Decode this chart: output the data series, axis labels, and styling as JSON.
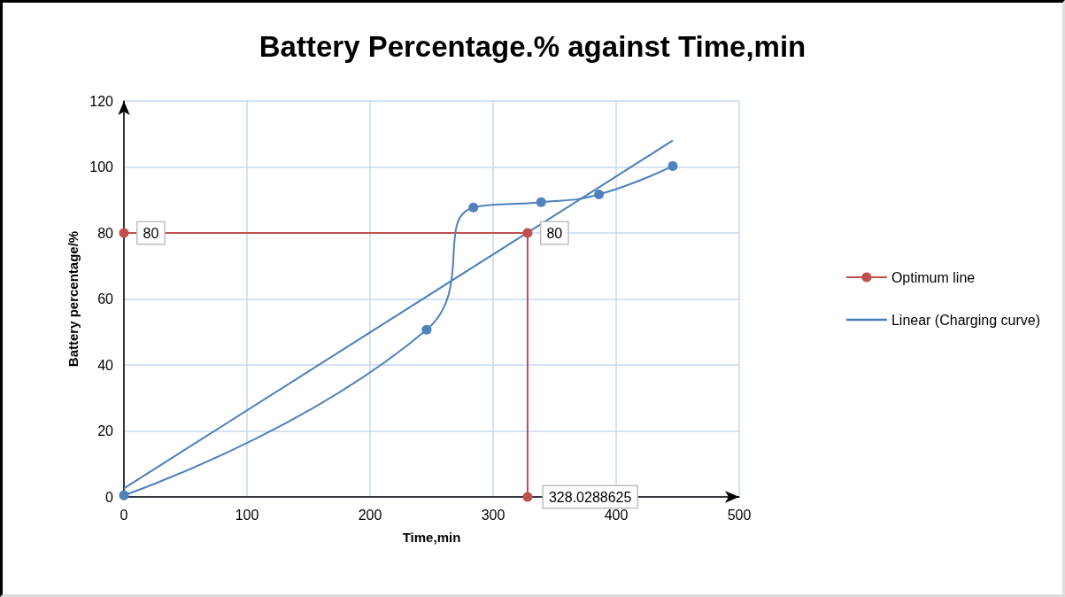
{
  "chart_data": {
    "type": "line",
    "title": "Battery Percentage.% against Time,min",
    "xlabel": "Time,min",
    "ylabel": "Battery percentage/%",
    "xlim": [
      0,
      500
    ],
    "xticks": [
      0,
      100,
      200,
      300,
      400,
      500
    ],
    "ylim": [
      0,
      120
    ],
    "yticks": [
      0,
      20,
      40,
      60,
      80,
      100,
      120
    ],
    "grid": true,
    "legend": "right",
    "marker": "circle",
    "annotations": [
      {
        "text": "328.0288625",
        "x": 328.0288625,
        "y": 0
      }
    ],
    "series": [
      {
        "name": "Optimum line",
        "color": "#c0504d",
        "x": [
          0,
          328.0288625,
          328.0288625
        ],
        "values": [
          80,
          80,
          0
        ],
        "value_labels": [
          "80",
          "80",
          null
        ]
      },
      {
        "color": "#4f81bd",
        "x": [
          0,
          246,
          284,
          339,
          386,
          446
        ],
        "values": [
          0.5,
          50.7,
          87.7,
          89.3,
          91.7,
          100.3
        ]
      },
      {
        "name": "Linear (Charging curve)",
        "marker": "none",
        "color": "#4a7ebb",
        "x": [
          0,
          446
        ],
        "values": [
          2.6,
          108
        ]
      }
    ]
  }
}
